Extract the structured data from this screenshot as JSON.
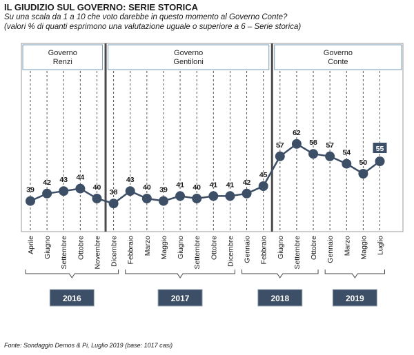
{
  "title": "IL GIUDIZIO SUL GOVERNO: SERIE STORICA",
  "subtitle": [
    "Su una scala da 1 a 10 che voto darebbe  in questo momento al Governo Conte?",
    "(valori % di quanti esprimono una valutazione uguale  o superiore  a 6 – Serie storica)"
  ],
  "source": "Fonte: Sondaggio Demos & Pi, Luglio 2019 (base: 1017 casi)",
  "colors": {
    "line": "#3d4f66",
    "marker": "#3d4f66",
    "header_border": "#7a9bb5",
    "year_box": "#3d4f66",
    "divider": "#4a4a4a",
    "highlight_label_bg": "#3d4f66"
  },
  "chart_data": {
    "type": "line",
    "title": "IL GIUDIZIO SUL GOVERNO: SERIE STORICA",
    "categories": [
      "Aprile",
      "Giugno",
      "Settembre",
      "Ottobre",
      "Novembre",
      "Dicembre",
      "Febbraio",
      "Marzo",
      "Maggio",
      "Giugno",
      "Settembre",
      "Ottobre",
      "Dicembre",
      "Gennaio",
      "Febbraio",
      "Giugno",
      "Settembre",
      "Ottobre",
      "Gennaio",
      "Marzo",
      "Maggio",
      "Luglio"
    ],
    "series": [
      {
        "values": [
          39,
          42,
          43,
          44,
          40,
          38,
          43,
          40,
          39,
          41,
          40,
          41,
          41,
          42,
          45,
          57,
          62,
          58,
          57,
          54,
          50,
          55
        ]
      }
    ],
    "ylim": [
      30,
      70
    ],
    "highlighted_last_point": true,
    "governments": [
      {
        "label": [
          "Governo",
          "Renzi"
        ],
        "start_index": 0,
        "end_index": 4
      },
      {
        "label": [
          "Governo",
          "Gentiloni"
        ],
        "start_index": 5,
        "end_index": 14
      },
      {
        "label": [
          "Governo",
          "Conte"
        ],
        "start_index": 15,
        "end_index": 21
      }
    ],
    "years": [
      {
        "label": "2016",
        "start_index": 0,
        "end_index": 5
      },
      {
        "label": "2017",
        "start_index": 6,
        "end_index": 12
      },
      {
        "label": "2018",
        "start_index": 13,
        "end_index": 17
      },
      {
        "label": "2019",
        "start_index": 18,
        "end_index": 21
      }
    ],
    "grid": "vertical dashed"
  }
}
